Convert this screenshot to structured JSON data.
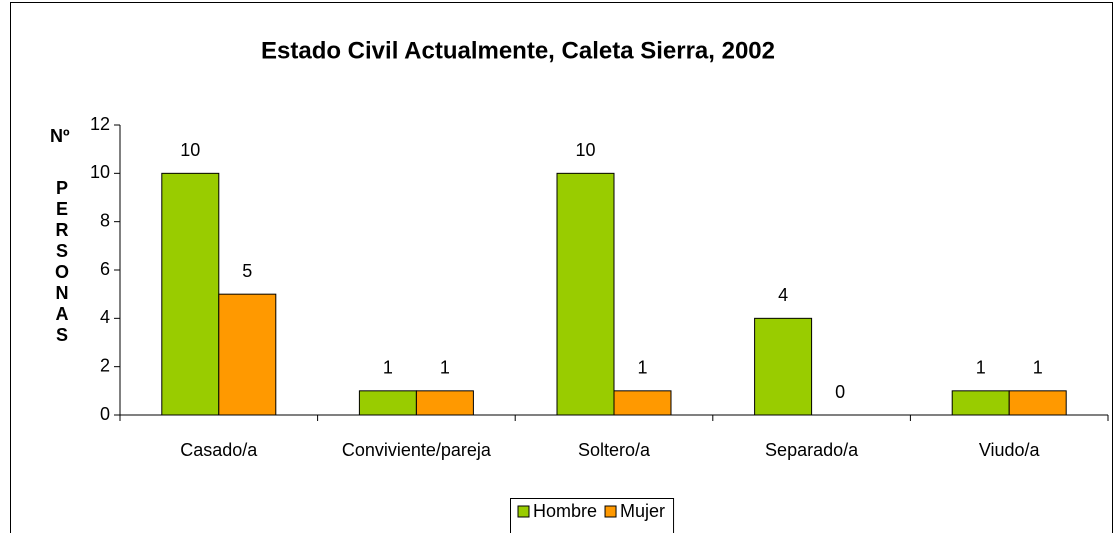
{
  "chart_data": {
    "type": "bar",
    "title": "Estado Civil Actualmente, Caleta Sierra, 2002",
    "ylabel": [
      "Nº",
      "PERSONAS"
    ],
    "categories": [
      "Casado/a",
      "Conviviente/pareja",
      "Soltero/a",
      "Separado/a",
      "Viudo/a"
    ],
    "series": [
      {
        "name": "Hombre",
        "color": "#99cc00",
        "values": [
          10,
          1,
          10,
          4,
          1
        ]
      },
      {
        "name": "Mujer",
        "color": "#ff9900",
        "values": [
          5,
          1,
          1,
          0,
          1
        ]
      }
    ],
    "ylim": [
      0,
      12
    ],
    "yticks": [
      0,
      2,
      4,
      6,
      8,
      10,
      12
    ],
    "grid": false,
    "legend": "bottom"
  }
}
